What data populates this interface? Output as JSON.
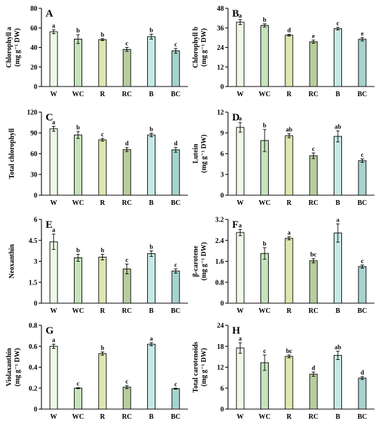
{
  "colors": {
    "W": "#eef8e7",
    "WC": "#c5e4bb",
    "R": "#dfe7b0",
    "RC": "#b7cda0",
    "B": "#c6e9e3",
    "BC": "#a7d3cf"
  },
  "chart_data": [
    {
      "panel": "A",
      "type": "bar",
      "ylabel": [
        "Chlorophyll a",
        "(mg g⁻¹ DW)"
      ],
      "categories": [
        "W",
        "WC",
        "R",
        "RC",
        "B",
        "BC"
      ],
      "values": [
        56,
        48.5,
        48,
        38,
        51,
        36.5
      ],
      "errors": [
        2,
        4.5,
        1,
        2,
        2.5,
        2.5
      ],
      "letters": [
        "a",
        "b",
        "b",
        "c",
        "b",
        "c"
      ],
      "ylim": [
        0,
        80
      ],
      "yticks": [
        0,
        20,
        40,
        60,
        80
      ]
    },
    {
      "panel": "B",
      "type": "bar",
      "ylabel": [
        "Chlorophyll b",
        "(mg g⁻¹ DW)"
      ],
      "categories": [
        "W",
        "WC",
        "R",
        "RC",
        "B",
        "BC"
      ],
      "values": [
        39.5,
        37.5,
        31.5,
        27.5,
        35.5,
        29
      ],
      "errors": [
        1.5,
        1,
        0.5,
        1,
        0.8,
        1
      ],
      "letters": [
        "a",
        "b",
        "d",
        "e",
        "c",
        "e"
      ],
      "ylim": [
        0,
        48
      ],
      "yticks": [
        0,
        12,
        24,
        36,
        48
      ]
    },
    {
      "panel": "C",
      "type": "bar",
      "ylabel": [
        "Total chlorophyll"
      ],
      "categories": [
        "W",
        "WC",
        "R",
        "RC",
        "B",
        "BC"
      ],
      "values": [
        96,
        87,
        80,
        66,
        87,
        65.5
      ],
      "errors": [
        3.5,
        5,
        2,
        3,
        2.5,
        3.5
      ],
      "letters": [
        "a",
        "b",
        "c",
        "d",
        "b",
        "d"
      ],
      "ylim": [
        0,
        120
      ],
      "yticks": [
        0,
        30,
        60,
        90,
        120
      ]
    },
    {
      "panel": "D",
      "type": "bar",
      "ylabel": [
        "Lutein",
        "(mg g⁻¹ DW)"
      ],
      "categories": [
        "W",
        "WC",
        "R",
        "RC",
        "B",
        "BC"
      ],
      "values": [
        9.8,
        7.9,
        8.6,
        5.7,
        8.5,
        5.0
      ],
      "errors": [
        0.7,
        1.6,
        0.3,
        0.4,
        0.8,
        0.25
      ],
      "letters": [
        "a",
        "b",
        "ab",
        "c",
        "ab",
        "c"
      ],
      "ylim": [
        0,
        12
      ],
      "yticks": [
        0,
        3,
        6,
        9,
        12
      ]
    },
    {
      "panel": "E",
      "type": "bar",
      "ylabel": [
        "Neoxanthin"
      ],
      "categories": [
        "W",
        "WC",
        "R",
        "RC",
        "B",
        "BC"
      ],
      "values": [
        4.4,
        3.25,
        3.3,
        2.45,
        3.55,
        2.3
      ],
      "errors": [
        0.55,
        0.25,
        0.2,
        0.35,
        0.2,
        0.15
      ],
      "letters": [
        "a",
        "b",
        "b",
        "c",
        "b",
        "c"
      ],
      "ylim": [
        0,
        6
      ],
      "yticks": [
        0,
        1.5,
        3,
        4.5,
        6
      ],
      "ytick_labels": [
        "0",
        "1.5",
        "3",
        "4.5",
        "6"
      ]
    },
    {
      "panel": "F",
      "type": "bar",
      "ylabel": [
        "β-carotene",
        "(mg g⁻¹ DW)"
      ],
      "categories": [
        "W",
        "WC",
        "R",
        "RC",
        "B",
        "BC"
      ],
      "values": [
        2.7,
        1.9,
        2.48,
        1.62,
        2.68,
        1.4
      ],
      "errors": [
        0.12,
        0.22,
        0.06,
        0.08,
        0.35,
        0.06
      ],
      "letters": [
        "a",
        "b",
        "a",
        "bc",
        "a",
        "c"
      ],
      "ylim": [
        0,
        3.2
      ],
      "yticks": [
        0,
        0.8,
        1.6,
        2.4,
        3.2
      ],
      "ytick_labels": [
        "0",
        "0.8",
        "1.6",
        "2.4",
        "3.2"
      ]
    },
    {
      "panel": "G",
      "type": "bar",
      "ylabel": [
        "Violaxanthin",
        "(mg g⁻¹ DW)"
      ],
      "categories": [
        "W",
        "WC",
        "R",
        "RC",
        "B",
        "BC"
      ],
      "values": [
        0.6,
        0.2,
        0.53,
        0.21,
        0.62,
        0.195
      ],
      "errors": [
        0.02,
        0.005,
        0.015,
        0.015,
        0.015,
        0.005
      ],
      "letters": [
        "a",
        "c",
        "b",
        "c",
        "a",
        "c"
      ],
      "ylim": [
        0,
        0.8
      ],
      "yticks": [
        0,
        0.2,
        0.4,
        0.6,
        0.8
      ],
      "ytick_labels": [
        "0",
        "0.2",
        "0.4",
        "0.6",
        "0.8"
      ]
    },
    {
      "panel": "H",
      "type": "bar",
      "ylabel": [
        "Total carotenoids",
        "(mg g⁻¹ DW)"
      ],
      "categories": [
        "W",
        "WC",
        "R",
        "RC",
        "B",
        "BC"
      ],
      "values": [
        17.5,
        13.3,
        15.1,
        10,
        15.4,
        8.9
      ],
      "errors": [
        1.5,
        2.2,
        0.4,
        0.6,
        1.2,
        0.4
      ],
      "letters": [
        "a",
        "c",
        "bc",
        "d",
        "ab",
        "d"
      ],
      "ylim": [
        0,
        24
      ],
      "yticks": [
        0,
        6,
        12,
        18,
        24
      ]
    }
  ]
}
